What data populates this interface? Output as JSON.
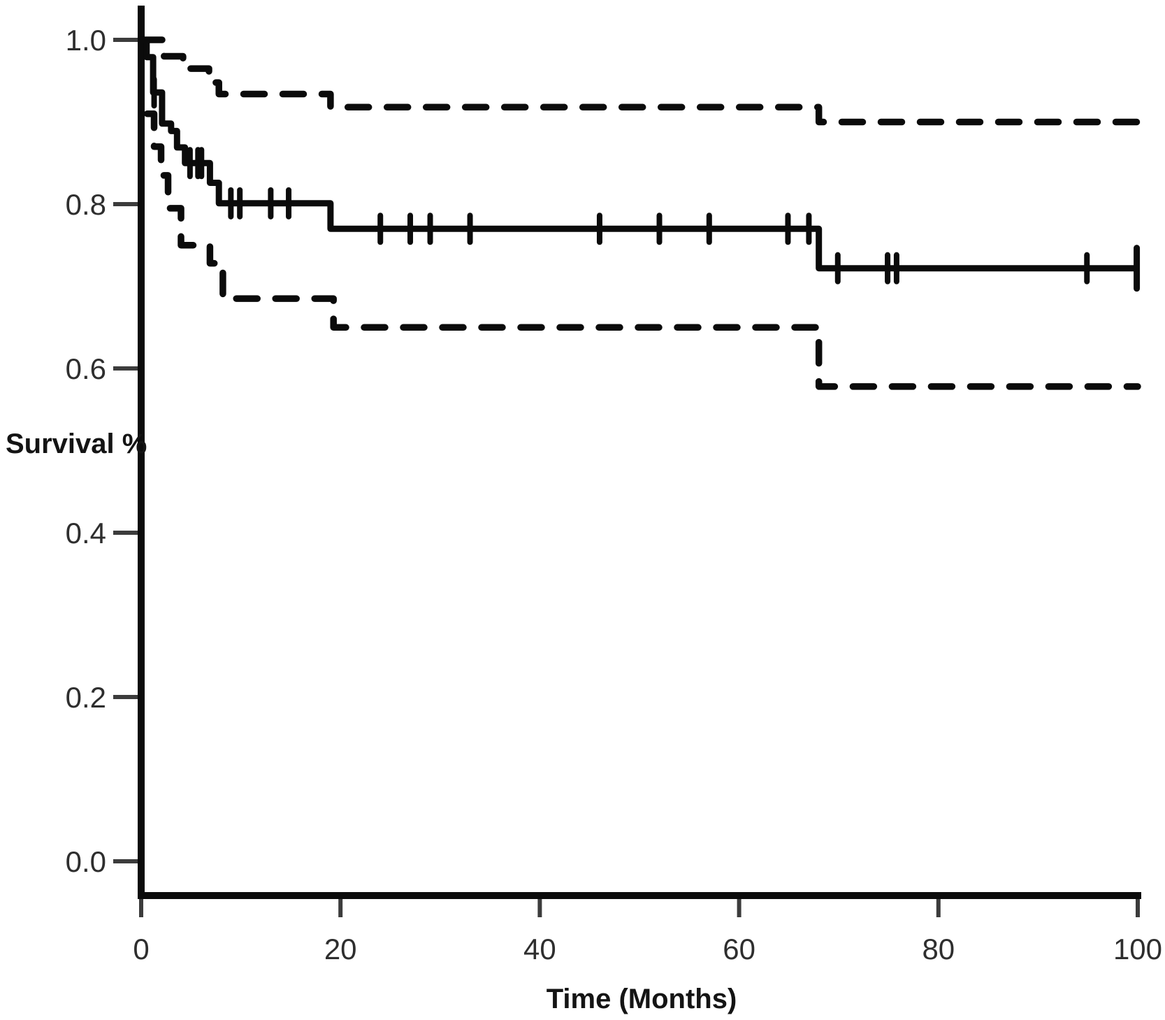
{
  "figure": {
    "y_axis_title": "Survival %",
    "x_axis_title": "Time (Months)"
  },
  "colors": {
    "curve": "#0b0b0b",
    "axis": "#0b0b0b",
    "tick_mark": "#3c3c3c",
    "tick_label": "#2e2e2e",
    "background": "#ffffff"
  },
  "chart_data": {
    "type": "line",
    "subtype": "kaplan-meier-step-curve",
    "title": "",
    "xlabel": "Time (Months)",
    "ylabel": "Survival %",
    "xlim": [
      0,
      100
    ],
    "ylim": [
      0.0,
      1.0
    ],
    "grid": false,
    "legend_position": "none",
    "x_ticks": [
      {
        "value": 0,
        "label": "0"
      },
      {
        "value": 20,
        "label": "20"
      },
      {
        "value": 40,
        "label": "40"
      },
      {
        "value": 60,
        "label": "60"
      },
      {
        "value": 80,
        "label": "80"
      },
      {
        "value": 100,
        "label": "100"
      }
    ],
    "y_ticks": [
      {
        "value": 1.0,
        "label": "1.0"
      },
      {
        "value": 0.8,
        "label": "0.8"
      },
      {
        "value": 0.6,
        "label": "0.6"
      },
      {
        "value": 0.4,
        "label": "0.4"
      },
      {
        "value": 0.2,
        "label": "0.2"
      },
      {
        "value": 0.0,
        "label": "0.0"
      }
    ],
    "series": [
      {
        "name": "survival-estimate",
        "line_style": "solid",
        "step": "after",
        "end_x": 100,
        "points": [
          [
            0,
            1.0
          ],
          [
            0.55,
            0.979
          ],
          [
            1.2,
            0.936
          ],
          [
            2.1,
            0.898
          ],
          [
            3.0,
            0.889
          ],
          [
            3.6,
            0.869
          ],
          [
            4.4,
            0.85
          ],
          [
            6.9,
            0.826
          ],
          [
            7.8,
            0.801
          ],
          [
            19,
            0.77
          ],
          [
            68,
            0.722
          ]
        ]
      },
      {
        "name": "upper-95ci",
        "line_style": "dashed",
        "step": "after",
        "end_x": 100,
        "points": [
          [
            0,
            1.0
          ],
          [
            2.3,
            0.98
          ],
          [
            4.2,
            0.965
          ],
          [
            6.8,
            0.948
          ],
          [
            7.8,
            0.934
          ],
          [
            19,
            0.918
          ],
          [
            68,
            0.9
          ]
        ]
      },
      {
        "name": "lower-95ci",
        "line_style": "dashed",
        "step": "after",
        "end_x": 100,
        "points": [
          [
            0.6,
            0.91
          ],
          [
            1.3,
            0.87
          ],
          [
            2.0,
            0.835
          ],
          [
            2.7,
            0.795
          ],
          [
            4.0,
            0.75
          ],
          [
            6.9,
            0.728
          ],
          [
            8.2,
            0.685
          ],
          [
            19.3,
            0.65
          ],
          [
            68,
            0.578
          ]
        ]
      }
    ],
    "censor_marks": {
      "on_series": "survival-estimate",
      "points": [
        [
          1.3,
          0.936
        ],
        [
          4.9,
          0.85
        ],
        [
          5.7,
          0.85
        ],
        [
          6.05,
          0.85
        ],
        [
          9.0,
          0.801
        ],
        [
          9.9,
          0.801
        ],
        [
          13.0,
          0.801
        ],
        [
          14.8,
          0.801
        ],
        [
          24,
          0.77
        ],
        [
          27,
          0.77
        ],
        [
          29,
          0.77
        ],
        [
          33,
          0.77
        ],
        [
          46,
          0.77
        ],
        [
          52,
          0.77
        ],
        [
          57,
          0.77
        ],
        [
          64.9,
          0.77
        ],
        [
          67,
          0.77
        ],
        [
          69.9,
          0.722
        ],
        [
          74.9,
          0.722
        ],
        [
          75.8,
          0.722
        ],
        [
          94.9,
          0.722
        ]
      ],
      "terminal_tick": [
        99.9,
        0.722
      ]
    }
  }
}
